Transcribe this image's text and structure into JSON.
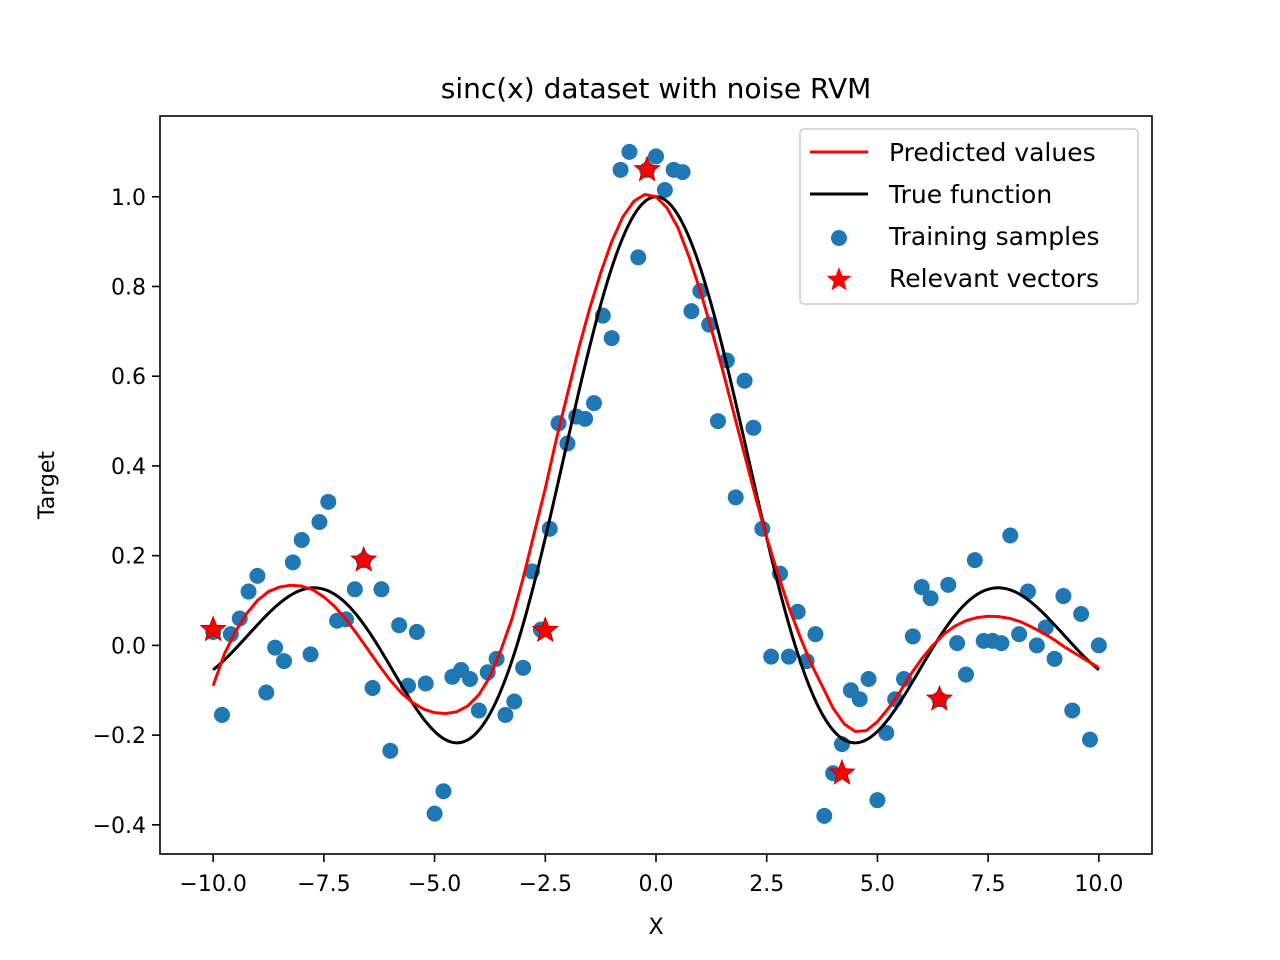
{
  "chart_data": {
    "type": "scatter",
    "title": "sinc(x) dataset with noise RVM",
    "xlabel": "X",
    "ylabel": "Target",
    "xlim": [
      -11.2,
      11.2
    ],
    "ylim": [
      -0.465,
      1.18
    ],
    "xticks": [
      -10.0,
      -7.5,
      -5.0,
      -2.5,
      0.0,
      2.5,
      5.0,
      7.5,
      10.0
    ],
    "xtick_labels": [
      "−10.0",
      "−7.5",
      "−5.0",
      "−2.5",
      "0.0",
      "2.5",
      "5.0",
      "7.5",
      "10.0"
    ],
    "yticks": [
      -0.4,
      -0.2,
      0.0,
      0.2,
      0.4,
      0.6,
      0.8,
      1.0
    ],
    "ytick_labels": [
      "−0.4",
      "−0.2",
      "0.0",
      "0.2",
      "0.4",
      "0.6",
      "0.8",
      "1.0"
    ],
    "grid": false,
    "legend_position": "top-right",
    "series": [
      {
        "name": "Predicted values",
        "kind": "line",
        "color": "#ff0000",
        "x": [
          -10.0,
          -9.75,
          -9.5,
          -9.25,
          -9.0,
          -8.75,
          -8.5,
          -8.25,
          -8.0,
          -7.75,
          -7.5,
          -7.25,
          -7.0,
          -6.75,
          -6.5,
          -6.25,
          -6.0,
          -5.75,
          -5.5,
          -5.25,
          -5.0,
          -4.75,
          -4.5,
          -4.25,
          -4.0,
          -3.75,
          -3.5,
          -3.25,
          -3.0,
          -2.75,
          -2.5,
          -2.25,
          -2.0,
          -1.75,
          -1.5,
          -1.25,
          -1.0,
          -0.75,
          -0.5,
          -0.25,
          0.0,
          0.25,
          0.5,
          0.75,
          1.0,
          1.25,
          1.5,
          1.75,
          2.0,
          2.25,
          2.5,
          2.75,
          3.0,
          3.25,
          3.5,
          3.75,
          4.0,
          4.25,
          4.5,
          4.75,
          5.0,
          5.25,
          5.5,
          5.75,
          6.0,
          6.25,
          6.5,
          6.75,
          7.0,
          7.25,
          7.5,
          7.75,
          8.0,
          8.25,
          8.5,
          8.75,
          9.0,
          9.25,
          9.5,
          9.75,
          10.0
        ],
        "y": [
          -0.09,
          -0.02,
          0.03,
          0.07,
          0.1,
          0.12,
          0.13,
          0.134,
          0.132,
          0.124,
          0.108,
          0.086,
          0.058,
          0.025,
          -0.01,
          -0.045,
          -0.078,
          -0.106,
          -0.127,
          -0.142,
          -0.15,
          -0.152,
          -0.148,
          -0.135,
          -0.11,
          -0.07,
          -0.01,
          0.06,
          0.15,
          0.25,
          0.35,
          0.46,
          0.56,
          0.66,
          0.75,
          0.83,
          0.9,
          0.955,
          0.99,
          1.005,
          1.0,
          0.975,
          0.93,
          0.865,
          0.79,
          0.705,
          0.615,
          0.52,
          0.425,
          0.33,
          0.24,
          0.16,
          0.085,
          0.02,
          -0.04,
          -0.09,
          -0.14,
          -0.175,
          -0.192,
          -0.19,
          -0.17,
          -0.14,
          -0.105,
          -0.065,
          -0.03,
          0.0,
          0.025,
          0.043,
          0.055,
          0.062,
          0.065,
          0.064,
          0.06,
          0.052,
          0.04,
          0.027,
          0.012,
          -0.005,
          -0.02,
          -0.035,
          -0.05
        ]
      },
      {
        "name": "True function",
        "kind": "line",
        "color": "#000000",
        "function": "sin(x)/x",
        "x_range": [
          -10.0,
          10.0
        ]
      },
      {
        "name": "Training samples",
        "kind": "scatter",
        "color": "#1f77b4",
        "x": [
          -10.0,
          -9.8,
          -9.6,
          -9.4,
          -9.2,
          -9.0,
          -8.8,
          -8.6,
          -8.4,
          -8.2,
          -8.0,
          -7.8,
          -7.6,
          -7.4,
          -7.2,
          -7.0,
          -6.8,
          -6.6,
          -6.4,
          -6.2,
          -6.0,
          -5.8,
          -5.6,
          -5.4,
          -5.2,
          -5.0,
          -4.8,
          -4.6,
          -4.4,
          -4.2,
          -4.0,
          -3.8,
          -3.6,
          -3.4,
          -3.2,
          -3.0,
          -2.8,
          -2.6,
          -2.4,
          -2.2,
          -2.0,
          -1.8,
          -1.6,
          -1.4,
          -1.2,
          -1.0,
          -0.8,
          -0.6,
          -0.4,
          -0.2,
          0.0,
          0.2,
          0.4,
          0.6,
          0.8,
          1.0,
          1.2,
          1.4,
          1.6,
          1.8,
          2.0,
          2.2,
          2.4,
          2.6,
          2.8,
          3.0,
          3.2,
          3.4,
          3.6,
          3.8,
          4.0,
          4.2,
          4.4,
          4.6,
          4.8,
          5.0,
          5.2,
          5.4,
          5.6,
          5.8,
          6.0,
          6.2,
          6.4,
          6.6,
          6.8,
          7.0,
          7.2,
          7.4,
          7.6,
          7.8,
          8.0,
          8.2,
          8.4,
          8.6,
          8.8,
          9.0,
          9.2,
          9.4,
          9.6,
          9.8,
          10.0
        ],
        "y": [
          0.03,
          -0.155,
          0.025,
          0.06,
          0.12,
          0.155,
          -0.105,
          -0.005,
          -0.035,
          0.185,
          0.235,
          -0.02,
          0.275,
          0.32,
          0.055,
          0.058,
          0.125,
          0.19,
          -0.095,
          0.125,
          -0.235,
          0.045,
          -0.09,
          0.03,
          -0.085,
          -0.375,
          -0.325,
          -0.07,
          -0.055,
          -0.075,
          -0.145,
          -0.06,
          -0.03,
          -0.155,
          -0.125,
          -0.05,
          0.165,
          0.035,
          0.26,
          0.495,
          0.45,
          0.51,
          0.505,
          0.54,
          0.735,
          0.685,
          1.06,
          1.1,
          0.865,
          1.06,
          1.09,
          1.015,
          1.06,
          1.055,
          0.745,
          0.79,
          0.715,
          0.5,
          0.635,
          0.33,
          0.59,
          0.485,
          0.26,
          -0.025,
          0.16,
          -0.025,
          0.075,
          -0.035,
          0.025,
          -0.38,
          -0.285,
          -0.22,
          -0.1,
          -0.12,
          -0.075,
          -0.345,
          -0.195,
          -0.12,
          -0.075,
          0.02,
          0.13,
          0.105,
          -0.12,
          0.135,
          0.005,
          -0.065,
          0.19,
          0.01,
          0.01,
          0.005,
          0.245,
          0.025,
          0.12,
          0.0,
          0.04,
          -0.03,
          0.11,
          -0.145,
          0.07,
          -0.21,
          0.0
        ]
      },
      {
        "name": "Relevant vectors",
        "kind": "scatter",
        "marker": "star",
        "color": "#ff0000",
        "x": [
          -10.0,
          -6.6,
          -2.5,
          -0.2,
          4.2,
          6.4
        ],
        "y": [
          0.035,
          0.19,
          0.033,
          1.06,
          -0.285,
          -0.12
        ]
      }
    ]
  }
}
